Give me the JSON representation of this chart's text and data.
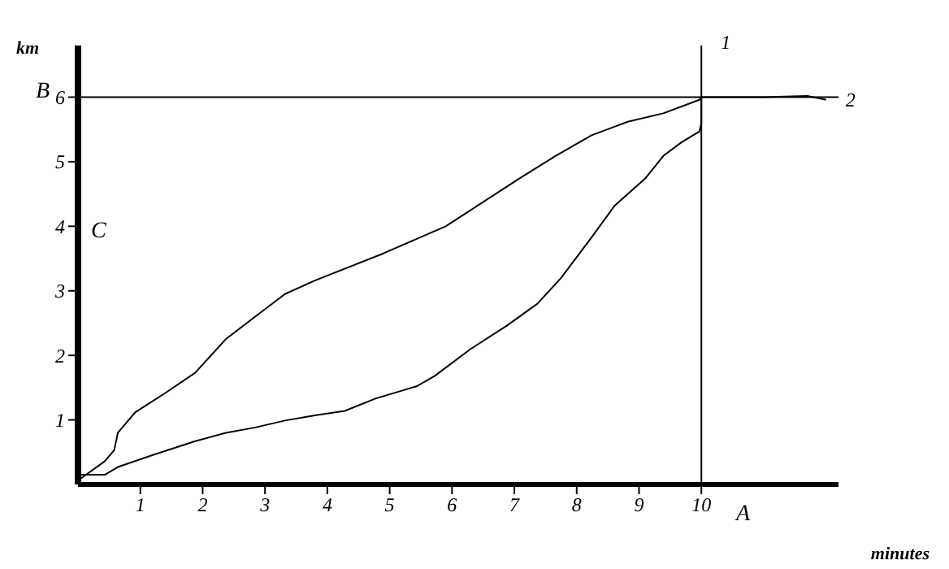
{
  "chart_data": {
    "type": "line",
    "xlabel": "minutes",
    "ylabel": "km",
    "xlim": [
      0,
      12.2
    ],
    "ylim": [
      0,
      6.8
    ],
    "xticks": [
      1,
      2,
      3,
      4,
      5,
      6,
      7,
      8,
      9,
      10
    ],
    "yticks": [
      1,
      2,
      3,
      4,
      5,
      6
    ],
    "grid": false,
    "legend": false,
    "marker": "none",
    "line_style": "solid",
    "series": [
      {
        "name": "2",
        "color": "#000000",
        "x": [
          0,
          0.43,
          0.58,
          0.64,
          0.92,
          1.39,
          1.88,
          2.37,
          2.83,
          3.32,
          3.8,
          4.9,
          5.9,
          7.08,
          7.66,
          8.24,
          8.82,
          9.39,
          9.97,
          10,
          11.0,
          11.7,
          12.0
        ],
        "values": [
          0.06,
          0.36,
          0.53,
          0.8,
          1.12,
          1.41,
          1.73,
          2.25,
          2.59,
          2.95,
          3.16,
          3.58,
          4.0,
          4.74,
          5.09,
          5.41,
          5.62,
          5.75,
          5.96,
          6,
          6,
          6.02,
          5.96
        ]
      },
      {
        "name": "1",
        "color": "#000000",
        "x": [
          0,
          0.43,
          0.64,
          1.21,
          1.88,
          2.37,
          2.83,
          3.32,
          3.8,
          4.28,
          4.77,
          5.43,
          5.72,
          6.3,
          6.88,
          7.37,
          7.75,
          8.24,
          8.61,
          9.1,
          9.39,
          9.68,
          9.97,
          10,
          10
        ],
        "values": [
          0.15,
          0.15,
          0.27,
          0.46,
          0.67,
          0.8,
          0.88,
          0.99,
          1.07,
          1.14,
          1.33,
          1.52,
          1.68,
          2.1,
          2.46,
          2.8,
          3.2,
          3.83,
          4.32,
          4.74,
          5.09,
          5.3,
          5.47,
          5.6,
          6
        ]
      }
    ],
    "ref_lines": [
      {
        "axis": "y",
        "value": 6,
        "color": "#000000"
      },
      {
        "axis": "x",
        "value": 10,
        "color": "#000000"
      }
    ],
    "annotations": [
      "A",
      "B",
      "C"
    ]
  }
}
